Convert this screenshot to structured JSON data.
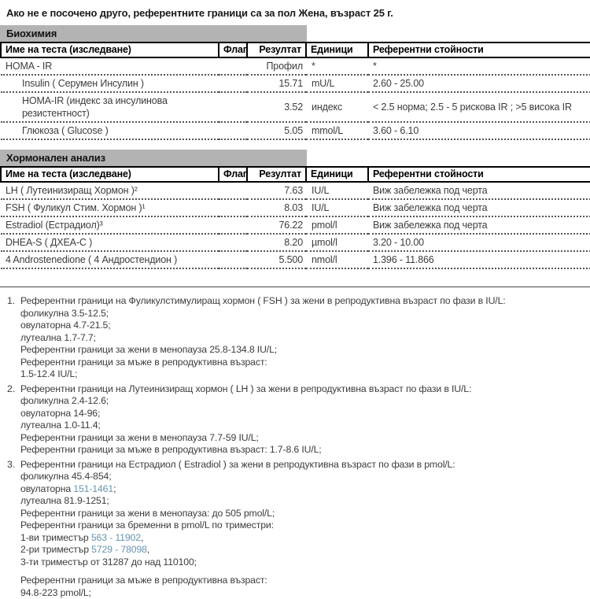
{
  "page_title": "Ако не е посочено друго, референтните граници са за пол Жена, възраст 25 г.",
  "colors": {
    "band_gray": "#b3b3b3",
    "link_blue": "#6793ae",
    "text": "#3c3c3c"
  },
  "table_headers": {
    "name": "Име на теста (изследване)",
    "flag": "Флаг",
    "result": "Резултат",
    "units": "Единици",
    "ref": "Референтни стойности"
  },
  "biochem": {
    "section_title": "Биохимия",
    "rows": [
      {
        "name": "HOMA - IR",
        "flag": "",
        "result": "Профил",
        "units": "*",
        "ref": "*"
      },
      {
        "name": "Insulin ( Серумен Инсулин )",
        "flag": "",
        "result": "15.71",
        "units": "mU/L",
        "ref": "2.60 - 25.00"
      },
      {
        "name": "HOMA-IR (индекс за инсулинова резистентност)",
        "flag": "",
        "result": "3.52",
        "units": "индекс",
        "ref": "< 2.5 норма; 2.5 - 5 рискова IR ; >5 висока IR"
      },
      {
        "name": "Глюкоза ( Glucose )",
        "flag": "",
        "result": "5.05",
        "units": "mmol/L",
        "ref": "3.60 - 6.10"
      }
    ]
  },
  "hormonal": {
    "section_title": "Хормонален анализ",
    "rows": [
      {
        "name": "LH ( Лутеинизиращ Хормон )²",
        "flag": "",
        "result": "7.63",
        "units": "IU/L",
        "ref": "Виж забележка под черта"
      },
      {
        "name": "FSH ( Фуликул Стим. Хормон )¹",
        "flag": "",
        "result": "8.03",
        "units": "IU/L",
        "ref": "Виж забележка под черта"
      },
      {
        "name": "Estradiol (Естрадиол)³",
        "flag": "",
        "result": "76.22",
        "units": "pmol/l",
        "ref": "Виж забележка под черта"
      },
      {
        "name": "DHEA-S ( ДХЕА-С )",
        "flag": "",
        "result": "8.20",
        "units": "µmol/l",
        "ref": "3.20 - 10.00"
      },
      {
        "name": "4 Androstenedione ( 4 Андростендион )",
        "flag": "",
        "result": "5.500",
        "units": "nmol/l",
        "ref": "1.396 - 11.866"
      }
    ]
  },
  "fn1": {
    "num": "1.",
    "l1": "Референтни граници на Фуликулстимулиращ хормон ( FSH ) за жени в репродуктивна възраст по фази в IU/L:",
    "l2": "фоликулна 3.5-12.5;",
    "l3": "овулаторна 4.7-21.5;",
    "l4": "лутеална 1.7-7.7;",
    "l5": "Референтни граници за жени в менопауза 25.8-134.8 IU/L;",
    "l6": "Референтни граници за мъже в репродуктивна възраст:",
    "l7": "1.5-12.4 IU/L;"
  },
  "fn2": {
    "num": "2.",
    "l1": "Референтни граници на Лутеинизиращ хормон ( LH ) за жени в репродуктивна възраст по фази в IU/L:",
    "l2": "фоликулна 2.4-12.6;",
    "l3": "овулаторна 14-96;",
    "l4": "лутеална 1.0-11.4;",
    "l5": "Референтни граници за жени в менопауза 7.7-59 IU/L;",
    "l6": "Референтни граници за мъже в репродуктивна възраст: 1.7-8.6 IU/L;"
  },
  "fn3": {
    "num": "3.",
    "l1": "Референтни граници на Естрадиол ( Estradiol ) за жени в репродуктивна възраст по фази в pmol/L:",
    "l2": "фоликулна 45.4-854;",
    "l3_pre": "овулаторна ",
    "l3_val": "151-1461",
    "l3_post": ";",
    "l4": "лутеална 81.9-1251;",
    "l5": "Референтни граници за жени в менопауза: до 505 pmol/L;",
    "l6": "Референтни граници за бременни в pmol/L по триместри:",
    "l7_pre": "1-ви триместър ",
    "l7_val": "563 - 11902",
    "l7_post": ",",
    "l8_pre": "2-ри триместър ",
    "l8_val": "5729 - 78098",
    "l8_post": ",",
    "l9": "3-ти триместър от 31287 до над 110100;",
    "l10": "Референтни граници за мъже в репродуктивна възраст:",
    "l11": "94.8-223 pmol/L;"
  }
}
